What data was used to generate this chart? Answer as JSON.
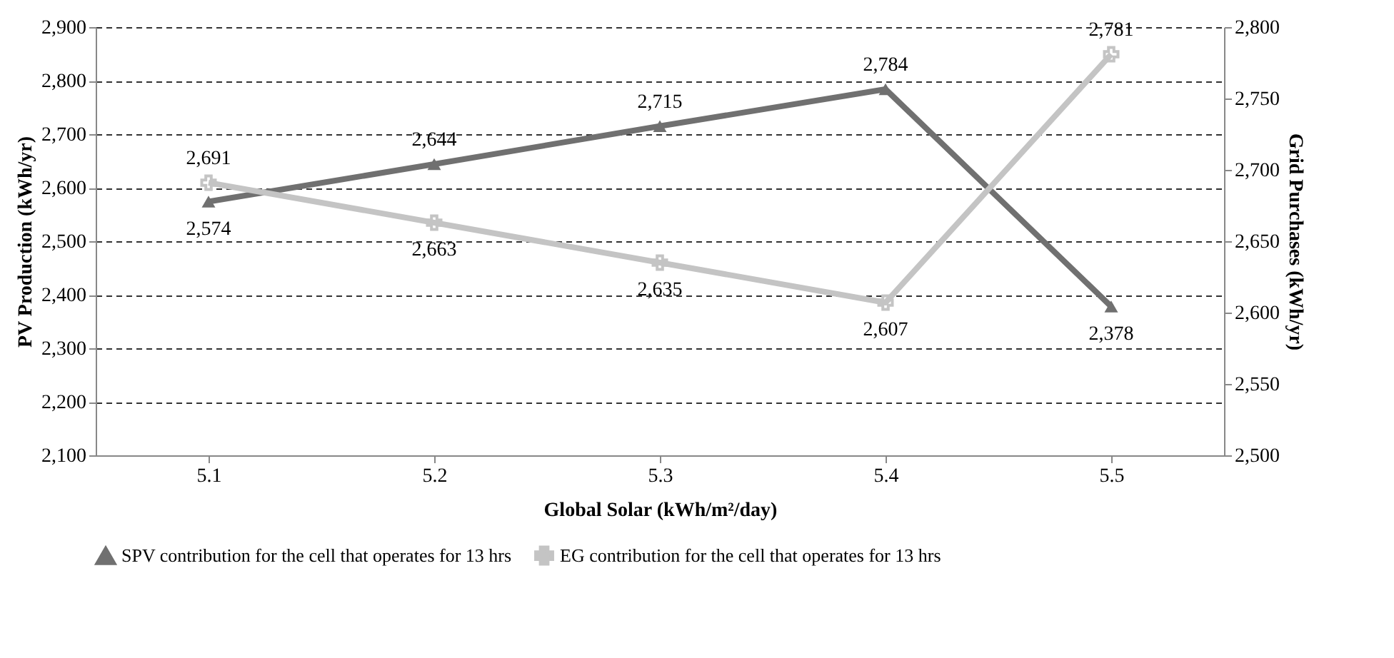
{
  "chart_data": {
    "type": "line",
    "xlabel": "Global Solar (kWh/m²/day)",
    "ylabel": "PV Production (kWh/yr)",
    "y2label": "Grid Purchases (kWh/yr)",
    "categories": [
      "5.1",
      "5.2",
      "5.3",
      "5.4",
      "5.5"
    ],
    "series": [
      {
        "name": "SPV contribution for the cell that operates for 13 hrs",
        "color": "#707070",
        "marker": "triangle",
        "values": [
          2574,
          2644,
          2715,
          2784,
          2378
        ],
        "value_labels": [
          "2,574",
          "2,644",
          "2,715",
          "2,784",
          "2,378"
        ]
      },
      {
        "name": "EG contribution for the cell that operates for 13 hrs",
        "color": "#c4c4c4",
        "marker": "cross",
        "axis": "y2",
        "values": [
          2691,
          2663,
          2635,
          2607,
          2781
        ],
        "value_labels": [
          "2,691",
          "2,663",
          "2,635",
          "2,607",
          "2,781"
        ]
      }
    ],
    "ylim": [
      2100,
      2900
    ],
    "yticks": [
      {
        "value": 2100,
        "label": "2,100"
      },
      {
        "value": 2200,
        "label": "2,200"
      },
      {
        "value": 2300,
        "label": "2,300"
      },
      {
        "value": 2400,
        "label": "2,400"
      },
      {
        "value": 2500,
        "label": "2,500"
      },
      {
        "value": 2600,
        "label": "2,600"
      },
      {
        "value": 2700,
        "label": "2,700"
      },
      {
        "value": 2800,
        "label": "2,800"
      },
      {
        "value": 2900,
        "label": "2,900"
      }
    ],
    "y2lim": [
      2500,
      2800
    ],
    "y2ticks": [
      {
        "value": 2500,
        "label": "2,500"
      },
      {
        "value": 2550,
        "label": "2,550"
      },
      {
        "value": 2600,
        "label": "2,600"
      },
      {
        "value": 2650,
        "label": "2,650"
      },
      {
        "value": 2700,
        "label": "2,700"
      },
      {
        "value": 2750,
        "label": "2,750"
      },
      {
        "value": 2800,
        "label": "2,800"
      }
    ],
    "grid": "y",
    "legend": "bottom",
    "line_style": "solid"
  }
}
